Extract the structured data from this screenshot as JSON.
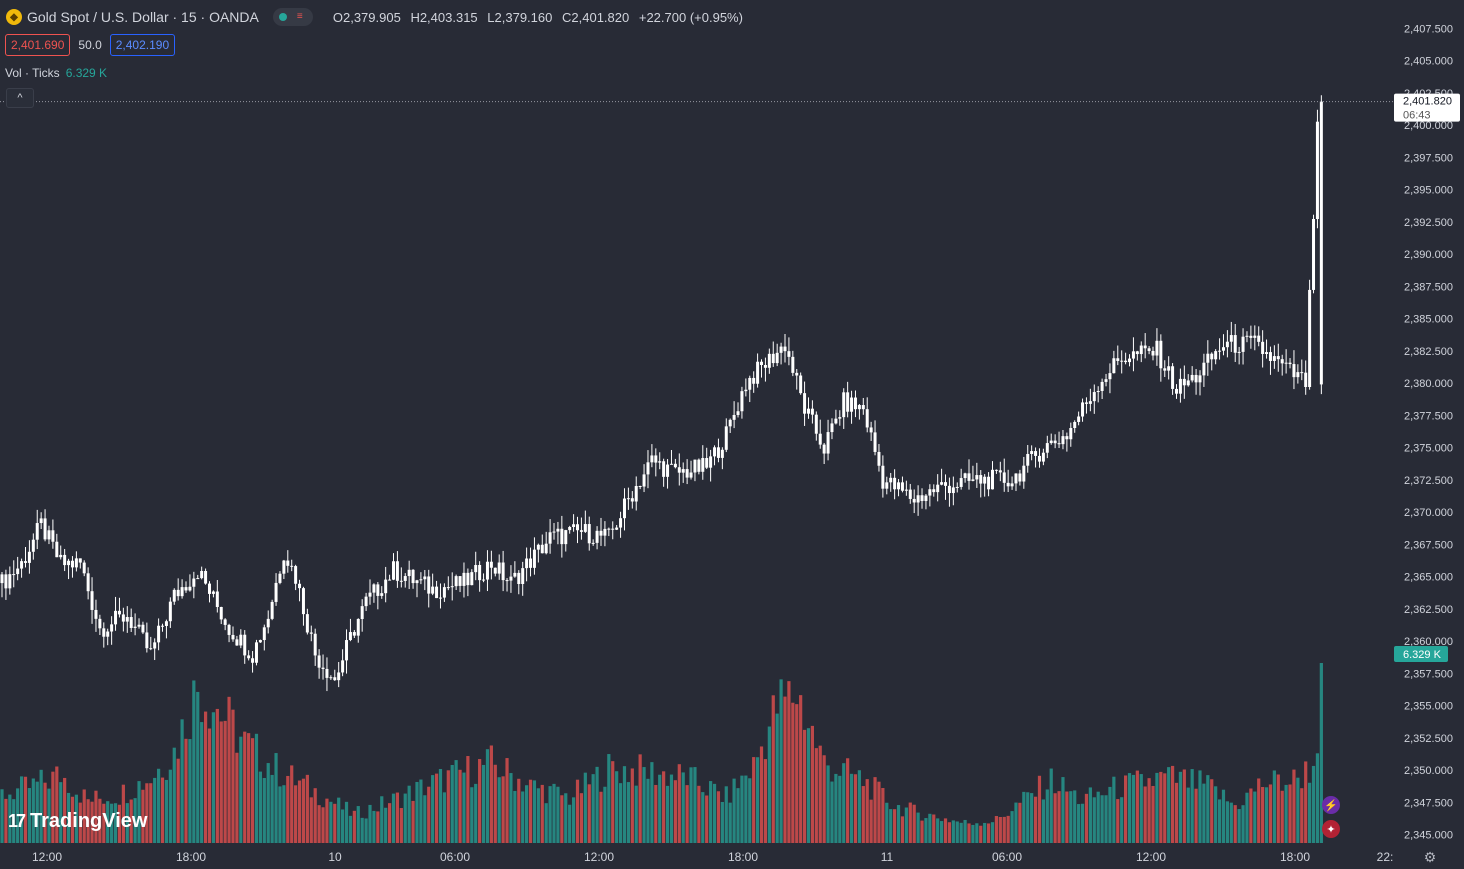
{
  "header": {
    "symbol_title": "Gold Spot / U.S. Dollar · 15 · OANDA",
    "ohlc": {
      "open": "O2,379.905",
      "high": "H2,403.315",
      "low": "L2,379.160",
      "close": "C2,401.820",
      "change": "+22.700 (+0.95%)"
    },
    "bid": "2,401.690",
    "spread": "50.0",
    "ask": "2,402.190"
  },
  "volume_legend": {
    "label": "Vol · Ticks",
    "value": "6.329 K"
  },
  "brand": "TradingView",
  "price_axis": {
    "labels": [
      "2,407.500",
      "2,405.000",
      "2,402.500",
      "2,400.000",
      "2,397.500",
      "2,395.000",
      "2,392.500",
      "2,390.000",
      "2,387.500",
      "2,385.000",
      "2,382.500",
      "2,380.000",
      "2,377.500",
      "2,375.000",
      "2,372.500",
      "2,370.000",
      "2,367.500",
      "2,365.000",
      "2,362.500",
      "2,360.000",
      "2,357.500",
      "2,355.000",
      "2,352.500",
      "2,350.000",
      "2,347.500",
      "2,345.000"
    ],
    "last_price_label": "2,401.820",
    "countdown": "06:43",
    "volume_label": "6.329 K"
  },
  "time_axis": {
    "labels": [
      "12:00",
      "18:00",
      "10",
      "06:00",
      "12:00",
      "18:00",
      "11",
      "06:00",
      "12:00",
      "18:00",
      "22:"
    ]
  },
  "colors": {
    "background": "#282b36",
    "up": "#ffffff",
    "down": "#ffffff",
    "vol_up": "#26a69a",
    "vol_down": "#ef5350",
    "axis_text": "#d1d4dc"
  },
  "chart_data": {
    "type": "candlestick",
    "title": "Gold Spot / U.S. Dollar · 15 · OANDA",
    "ylim": [
      2343.5,
      2409.0
    ],
    "x_ticks": [
      "12:00",
      "18:00",
      "10",
      "06:00",
      "12:00",
      "18:00",
      "11",
      "06:00",
      "12:00",
      "18:00"
    ],
    "anchors_price": [
      [
        0,
        2364.5
      ],
      [
        5,
        2366
      ],
      [
        10,
        2369
      ],
      [
        15,
        2366
      ],
      [
        20,
        2366
      ],
      [
        25,
        2361
      ],
      [
        32,
        2362
      ],
      [
        38,
        2359
      ],
      [
        44,
        2363.5
      ],
      [
        50,
        2365.5
      ],
      [
        58,
        2361
      ],
      [
        64,
        2359
      ],
      [
        68,
        2362
      ],
      [
        72,
        2367
      ],
      [
        75,
        2365
      ],
      [
        80,
        2359
      ],
      [
        85,
        2357
      ],
      [
        90,
        2361
      ],
      [
        93,
        2363
      ],
      [
        100,
        2365.5
      ],
      [
        110,
        2364
      ],
      [
        118,
        2364.5
      ],
      [
        125,
        2366
      ],
      [
        130,
        2364.5
      ],
      [
        140,
        2368
      ],
      [
        148,
        2368.5
      ],
      [
        155,
        2368
      ],
      [
        160,
        2371
      ],
      [
        166,
        2374
      ],
      [
        172,
        2373
      ],
      [
        180,
        2373.5
      ],
      [
        185,
        2376
      ],
      [
        190,
        2380
      ],
      [
        200,
        2383
      ],
      [
        205,
        2378
      ],
      [
        210,
        2375
      ],
      [
        215,
        2378.5
      ],
      [
        220,
        2378
      ],
      [
        225,
        2372.5
      ],
      [
        233,
        2371
      ],
      [
        240,
        2372
      ],
      [
        250,
        2372.5
      ],
      [
        258,
        2372.5
      ],
      [
        266,
        2375
      ],
      [
        272,
        2376
      ],
      [
        280,
        2380
      ],
      [
        286,
        2382
      ],
      [
        295,
        2382.5
      ],
      [
        300,
        2379.5
      ],
      [
        305,
        2380.5
      ],
      [
        312,
        2383
      ],
      [
        320,
        2383
      ],
      [
        326,
        2381.5
      ],
      [
        333,
        2380
      ],
      [
        336,
        2399.5
      ],
      [
        337,
        2401.8
      ]
    ],
    "anchors_volume": [
      [
        0,
        1700
      ],
      [
        8,
        2000
      ],
      [
        15,
        2400
      ],
      [
        22,
        1500
      ],
      [
        30,
        1700
      ],
      [
        38,
        2300
      ],
      [
        44,
        3200
      ],
      [
        50,
        5500
      ],
      [
        56,
        4600
      ],
      [
        62,
        3500
      ],
      [
        70,
        2600
      ],
      [
        80,
        1800
      ],
      [
        90,
        1000
      ],
      [
        100,
        1500
      ],
      [
        110,
        2100
      ],
      [
        118,
        2500
      ],
      [
        125,
        2800
      ],
      [
        135,
        2000
      ],
      [
        145,
        1600
      ],
      [
        155,
        2600
      ],
      [
        165,
        2500
      ],
      [
        175,
        2300
      ],
      [
        185,
        1600
      ],
      [
        192,
        2700
      ],
      [
        198,
        4800
      ],
      [
        203,
        5300
      ],
      [
        210,
        2800
      ],
      [
        220,
        2200
      ],
      [
        228,
        1300
      ],
      [
        236,
        1000
      ],
      [
        246,
        700
      ],
      [
        254,
        800
      ],
      [
        262,
        1600
      ],
      [
        268,
        2200
      ],
      [
        276,
        1500
      ],
      [
        284,
        1900
      ],
      [
        290,
        2100
      ],
      [
        298,
        2300
      ],
      [
        308,
        2000
      ],
      [
        315,
        1300
      ],
      [
        322,
        2100
      ],
      [
        330,
        2200
      ],
      [
        335,
        2700
      ],
      [
        337,
        5000
      ]
    ],
    "last_price": 2401.82,
    "last_volume": "6.329 K"
  }
}
